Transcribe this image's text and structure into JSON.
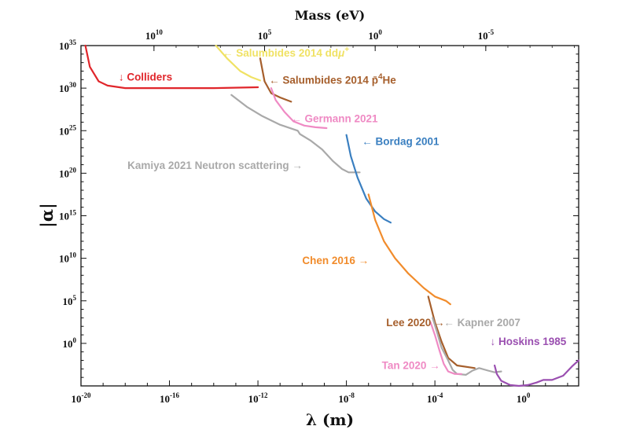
{
  "chart_data": {
    "type": "line",
    "xlabel": "λ (m)",
    "ylabel": "|α|",
    "top_label": "Mass (eV)",
    "x_scale": "log10",
    "y_scale": "log10",
    "xlim_log10": [
      -20,
      2.5
    ],
    "ylim_log10": [
      -5,
      35
    ],
    "x_ticks": [
      {
        "exp": -20,
        "base": "10",
        "sup": "-20"
      },
      {
        "exp": -16,
        "base": "10",
        "sup": "-16"
      },
      {
        "exp": -12,
        "base": "10",
        "sup": "-12"
      },
      {
        "exp": -8,
        "base": "10",
        "sup": "-8"
      },
      {
        "exp": -4,
        "base": "10",
        "sup": "-4"
      },
      {
        "exp": 0,
        "base": "10",
        "sup": "0"
      }
    ],
    "y_ticks": [
      {
        "exp": 35,
        "base": "10",
        "sup": "35"
      },
      {
        "exp": 30,
        "base": "10",
        "sup": "30"
      },
      {
        "exp": 25,
        "base": "10",
        "sup": "25"
      },
      {
        "exp": 20,
        "base": "10",
        "sup": "20"
      },
      {
        "exp": 15,
        "base": "10",
        "sup": "15"
      },
      {
        "exp": 10,
        "base": "10",
        "sup": "10"
      },
      {
        "exp": 5,
        "base": "10",
        "sup": "5"
      },
      {
        "exp": 0,
        "base": "10",
        "sup": "0"
      }
    ],
    "top_ticks": [
      {
        "label_base": "10",
        "label_sup": "10",
        "lambda_log10": -16.7
      },
      {
        "label_base": "10",
        "label_sup": "5",
        "lambda_log10": -11.7
      },
      {
        "label_base": "10",
        "label_sup": "0",
        "lambda_log10": -6.7
      },
      {
        "label_base": "10",
        "label_sup": "-5",
        "lambda_log10": -1.7
      }
    ],
    "series": [
      {
        "name": "Colliders",
        "label": "↓ Colliders",
        "color": "#e0262b",
        "label_at": [
          -18.3,
          30.9
        ],
        "points": [
          [
            -19.8,
            35
          ],
          [
            -19.6,
            32.5
          ],
          [
            -19.2,
            30.8
          ],
          [
            -18.8,
            30.3
          ],
          [
            -18.0,
            30.0
          ],
          [
            -16.0,
            30.0
          ],
          [
            -14.0,
            30.0
          ],
          [
            -12.0,
            30.1
          ]
        ]
      },
      {
        "name": "Salumbides 2014 ddμ+",
        "label": "← Salumbides 2014 dd",
        "label_sym": "μ",
        "label_sup": "+",
        "color": "#f0e264",
        "label_at": [
          -13.6,
          33.7
        ],
        "points": [
          [
            -13.9,
            35
          ],
          [
            -13.4,
            33.5
          ],
          [
            -12.8,
            32.0
          ],
          [
            -12.3,
            31.3
          ],
          [
            -11.9,
            30.9
          ]
        ]
      },
      {
        "name": "Salumbides 2014 p̄4He",
        "label": "← Salumbides 2014 ",
        "label_p": "p̄",
        "label_sup": "4",
        "label_end": "He",
        "color": "#a65f2c",
        "label_at": [
          -11.5,
          30.5
        ],
        "points": [
          [
            -11.9,
            33.5
          ],
          [
            -11.7,
            30.8
          ],
          [
            -11.4,
            29.4
          ],
          [
            -11.0,
            28.9
          ],
          [
            -10.5,
            28.4
          ]
        ]
      },
      {
        "name": "Germann 2021",
        "label": "← Germann 2021",
        "color": "#ef8ac4",
        "label_at": [
          -10.5,
          26.0
        ],
        "points": [
          [
            -11.4,
            30.0
          ],
          [
            -11.2,
            28.6
          ],
          [
            -10.8,
            27.2
          ],
          [
            -10.4,
            26.1
          ],
          [
            -9.9,
            25.6
          ],
          [
            -9.4,
            25.4
          ],
          [
            -8.9,
            25.3
          ]
        ]
      },
      {
        "name": "Kamiya 2021 Neutron scattering",
        "label": "Kamiya 2021 Neutron scattering →",
        "color": "#a9a9a9",
        "label_at": [
          -17.9,
          20.5
        ],
        "points": [
          [
            -13.2,
            29.2
          ],
          [
            -12.5,
            27.8
          ],
          [
            -11.8,
            26.7
          ],
          [
            -11.0,
            25.7
          ],
          [
            -10.2,
            25.0
          ],
          [
            -10.1,
            24.6
          ],
          [
            -9.6,
            23.8
          ],
          [
            -9.1,
            22.8
          ],
          [
            -8.6,
            21.4
          ],
          [
            -8.2,
            20.5
          ],
          [
            -7.9,
            20.1
          ],
          [
            -7.6,
            20.1
          ],
          [
            -7.4,
            20.1
          ]
        ]
      },
      {
        "name": "Bordag 2001",
        "label": "← Bordag 2001",
        "color": "#3a7fc0",
        "label_at": [
          -7.3,
          23.3
        ],
        "points": [
          [
            -8.0,
            24.5
          ],
          [
            -7.8,
            22.0
          ],
          [
            -7.5,
            19.5
          ],
          [
            -7.1,
            17.0
          ],
          [
            -6.7,
            15.5
          ],
          [
            -6.3,
            14.6
          ],
          [
            -6.0,
            14.2
          ]
        ]
      },
      {
        "name": "Chen 2016",
        "label": "Chen 2016 →",
        "color": "#f18c2c",
        "label_at": [
          -10.0,
          9.3
        ],
        "points": [
          [
            -7.0,
            17.5
          ],
          [
            -6.7,
            14.5
          ],
          [
            -6.3,
            12.0
          ],
          [
            -5.8,
            10.0
          ],
          [
            -5.2,
            8.2
          ],
          [
            -4.5,
            6.5
          ],
          [
            -4.0,
            5.5
          ],
          [
            -3.5,
            5.0
          ],
          [
            -3.3,
            4.6
          ]
        ]
      },
      {
        "name": "Lee 2020",
        "label": "Lee 2020 →",
        "color": "#a65f2c",
        "label_at": [
          -6.2,
          2.0
        ],
        "points": [
          [
            -4.3,
            5.5
          ],
          [
            -4.15,
            4.0
          ],
          [
            -4.0,
            2.5
          ],
          [
            -3.7,
            0.2
          ],
          [
            -3.4,
            -1.7
          ],
          [
            -3.0,
            -2.6
          ],
          [
            -2.2,
            -2.9
          ]
        ]
      },
      {
        "name": "Kapner 2007",
        "label": "← Kapner 2007",
        "color": "#a9a9a9",
        "label_at": [
          -3.6,
          2.0
        ],
        "points": [
          [
            -4.1,
            3.0
          ],
          [
            -3.9,
            1.3
          ],
          [
            -3.7,
            -0.5
          ],
          [
            -3.4,
            -2.0
          ],
          [
            -3.2,
            -3.1
          ],
          [
            -3.0,
            -3.6
          ],
          [
            -2.6,
            -3.7
          ],
          [
            -2.3,
            -3.2
          ],
          [
            -2.0,
            -2.9
          ],
          [
            -1.6,
            -3.2
          ],
          [
            -1.3,
            -3.4
          ],
          [
            -1.0,
            -3.3
          ]
        ]
      },
      {
        "name": "Tan 2020",
        "label": "Tan 2020 →",
        "color": "#ef8ac4",
        "label_at": [
          -6.4,
          -3.0
        ],
        "points": [
          [
            -4.2,
            2.5
          ],
          [
            -4.0,
            1.0
          ],
          [
            -3.8,
            -0.8
          ],
          [
            -3.6,
            -2.4
          ],
          [
            -3.4,
            -3.3
          ],
          [
            -3.1,
            -3.6
          ],
          [
            -2.8,
            -3.6
          ]
        ]
      },
      {
        "name": "Hoskins 1985",
        "label": "↓ Hoskins 1985",
        "color": "#9a4fb0",
        "label_at": [
          -1.5,
          -0.2
        ],
        "points": [
          [
            -1.3,
            -2.6
          ],
          [
            -1.2,
            -3.6
          ],
          [
            -1.0,
            -4.4
          ],
          [
            -0.6,
            -4.9
          ],
          [
            -0.2,
            -5.0
          ],
          [
            0.2,
            -4.9
          ],
          [
            0.6,
            -4.6
          ],
          [
            0.9,
            -4.3
          ],
          [
            1.3,
            -4.3
          ],
          [
            1.8,
            -3.8
          ],
          [
            2.2,
            -2.7
          ],
          [
            2.5,
            -2.0
          ]
        ]
      }
    ]
  }
}
